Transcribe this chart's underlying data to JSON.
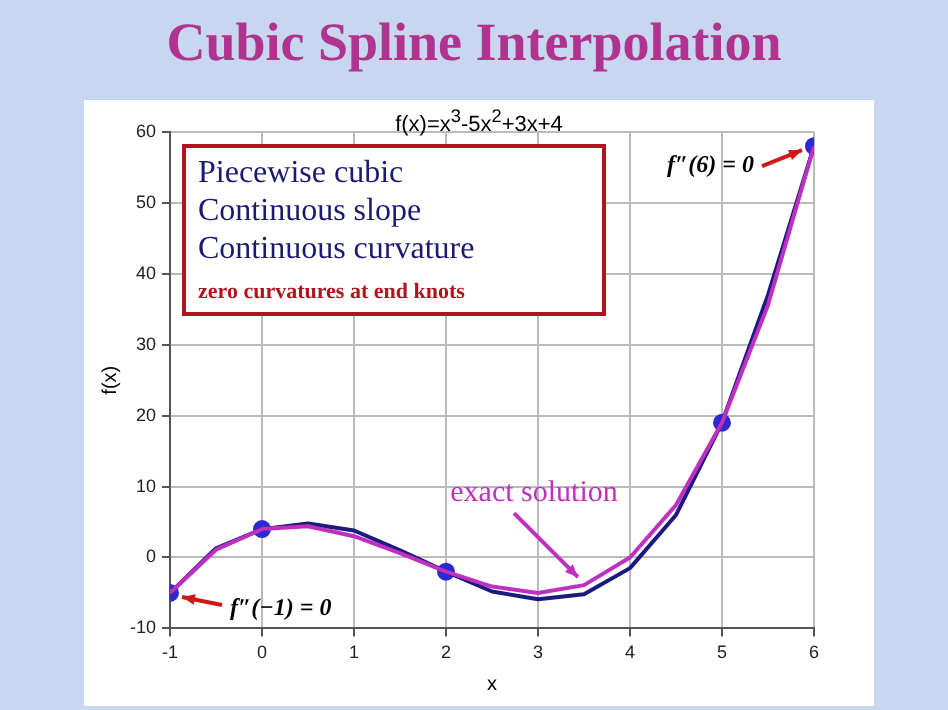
{
  "chart_data": {
    "type": "line",
    "title": "Cubic Spline Interpolation",
    "subtitle": "f(x)=x$^{3}$-5x$^{2}$+3x+4",
    "xlabel": "x",
    "ylabel": "f(x)",
    "x": [
      -1,
      -0.5,
      0,
      0.5,
      1,
      1.5,
      2,
      2.5,
      3,
      3.5,
      4,
      4.5,
      5,
      5.5,
      6
    ],
    "series": [
      {
        "name": "exact solution",
        "color": "#c030c0",
        "values": [
          -5,
          1.1,
          4,
          4.4,
          3,
          0.6,
          -2,
          -4.1,
          -5,
          -3.9,
          0,
          7.4,
          19,
          35.6,
          58
        ]
      },
      {
        "color": "#1a1a80",
        "values": [
          -5,
          1.3,
          4,
          4.8,
          3.8,
          1.0,
          -2,
          -4.8,
          -5.9,
          -5.2,
          -1.5,
          6,
          19,
          37,
          58
        ]
      },
      {
        "type": "scatter",
        "color": "#2b2bd0",
        "marker": "circle",
        "x": [
          -1,
          0,
          2,
          5,
          6
        ],
        "values": [
          -5,
          4,
          -2,
          19,
          58
        ]
      }
    ],
    "xlim": [
      -1,
      6
    ],
    "xticks": [
      -1,
      0,
      1,
      2,
      3,
      4,
      5,
      6
    ],
    "ylim": [
      -10,
      60
    ],
    "yticks": [
      -10,
      0,
      10,
      20,
      30,
      40,
      50,
      60
    ],
    "grid": true,
    "legend": false,
    "annotations": [
      "Piecewise cubic",
      "Continuous slope",
      "Continuous curvature",
      "zero curvatures at end knots",
      {
        "text": "f″(6) = 0",
        "x": 6,
        "y": 58
      },
      {
        "text": "f″(−1) = 0",
        "x": -1,
        "y": -5
      }
    ]
  }
}
